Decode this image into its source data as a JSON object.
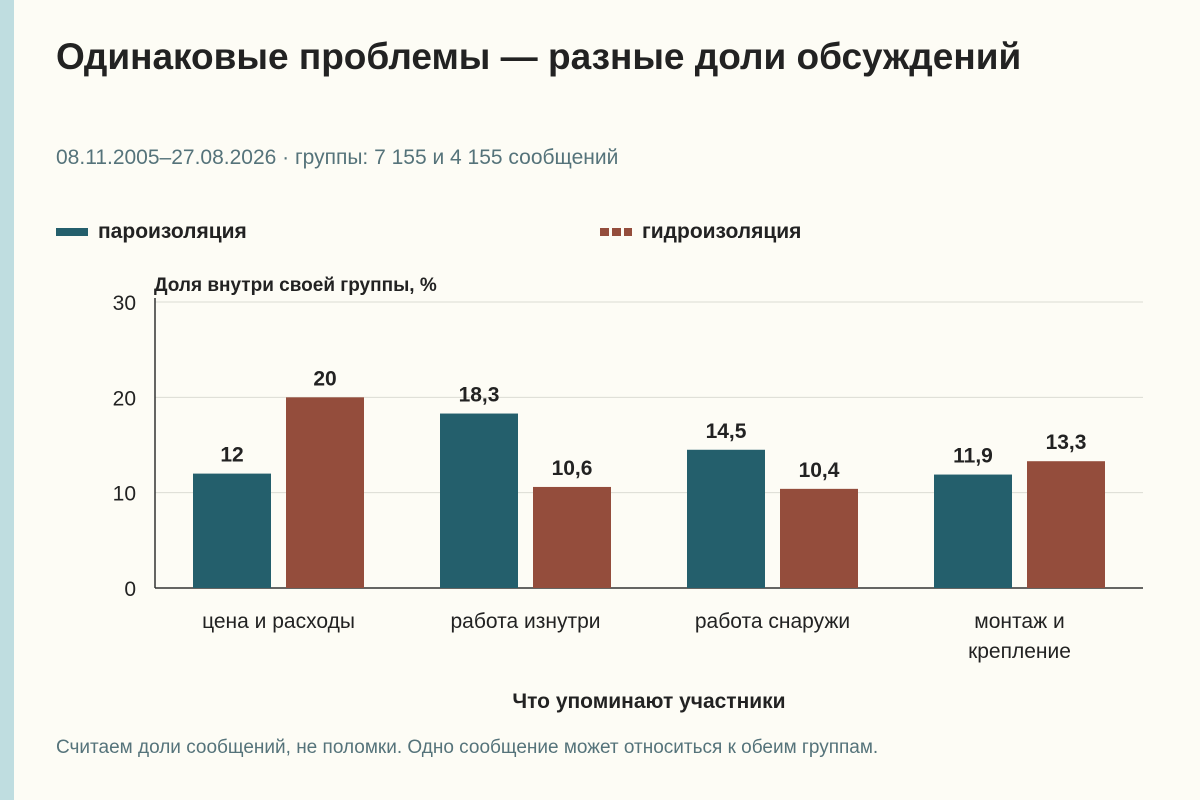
{
  "header": {
    "title": "Одинаковые проблемы — разные доли обсуждений",
    "subtitle": "08.11.2005–27.08.2026 · группы: 7 155 и 4 155 сообщений"
  },
  "footnote": "Считаем доли сообщений, не поломки. Одно сообщение может относиться к обеим группам.",
  "colors": {
    "series_1": "#245f6c",
    "series_2": "#944d3c",
    "grid": "#dcdcd4",
    "axis": "#333333"
  },
  "chart_data": {
    "type": "bar",
    "ylabel": "Доля внутри своей группы, %",
    "xlabel": "Что упоминают участники",
    "ylim": [
      0,
      30
    ],
    "yticks": [
      "0",
      "10",
      "20",
      "30"
    ],
    "grid": true,
    "legend_position": "top",
    "categories": [
      [
        "цена и расходы"
      ],
      [
        "работа изнутри"
      ],
      [
        "работа снаружи"
      ],
      [
        "монтаж и",
        "крепление"
      ]
    ],
    "series": [
      {
        "name": "пароизоляция",
        "values": [
          12,
          18.3,
          14.5,
          11.9
        ],
        "labels": [
          "12",
          "18,3",
          "14,5",
          "11,9"
        ]
      },
      {
        "name": "гидроизоляция",
        "values": [
          20,
          10.6,
          10.4,
          13.3
        ],
        "labels": [
          "20",
          "10,6",
          "10,4",
          "13,3"
        ]
      }
    ]
  }
}
